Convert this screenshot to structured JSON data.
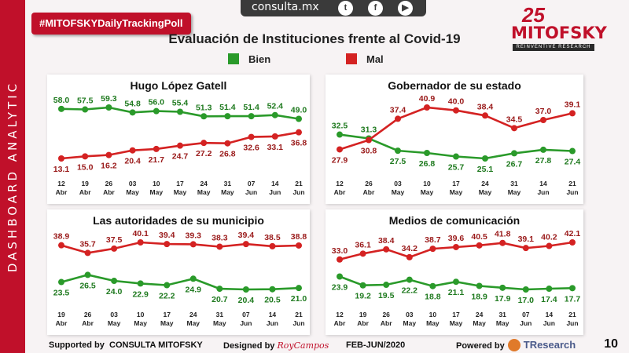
{
  "side_label": "DASHBOARD ANALYTIC",
  "hashtag": "#MITOFSKYDailyTrackingPoll",
  "topbar": {
    "site": "consulta.mx",
    "icons": [
      "twitter-icon",
      "facebook-icon",
      "youtube-icon"
    ]
  },
  "logo": {
    "number": "25",
    "name": "MITOFSKY",
    "tagline": "REINVENTIVE RESEARCH"
  },
  "colors": {
    "bien": "#2a9a2a",
    "mal": "#d42222",
    "bien_text": "#1f7a1f",
    "mal_text": "#9a1a1a"
  },
  "footer": {
    "supported_label": "Supported by",
    "supported_name": "CONSULTA MITOFSKY",
    "designed_label": "Designed by",
    "designed_name": "RoyCampos",
    "period": "FEB-JUN/2020",
    "powered_label": "Powered by",
    "powered_name": "TResearch",
    "page": "10"
  },
  "chart_data": [
    {
      "type": "line",
      "title": "Hugo López Gatell",
      "figure_title": "Evaluación de Instituciones frente al Covid-19",
      "legend": [
        "Bien",
        "Mal"
      ],
      "categories": [
        "12 Abr",
        "19 Abr",
        "26 Abr",
        "03 May",
        "10 May",
        "17 May",
        "24 May",
        "31 May",
        "07 Jun",
        "14 Jun",
        "21 Jun"
      ],
      "series": [
        {
          "name": "Bien",
          "values": [
            58.0,
            57.5,
            59.3,
            54.8,
            56.0,
            55.4,
            51.3,
            51.4,
            51.4,
            52.4,
            49.0
          ]
        },
        {
          "name": "Mal",
          "values": [
            13.1,
            15.0,
            16.2,
            20.4,
            21.7,
            24.7,
            27.2,
            26.8,
            32.6,
            33.1,
            36.8
          ]
        }
      ]
    },
    {
      "type": "line",
      "title": "Gobernador de su estado",
      "categories": [
        "12 Abr",
        "26 Abr",
        "03 May",
        "10 May",
        "17 May",
        "24 May",
        "31 May",
        "14 Jun",
        "21 Jun"
      ],
      "series": [
        {
          "name": "Bien",
          "values": [
            32.5,
            31.3,
            27.5,
            26.8,
            25.7,
            25.1,
            26.7,
            27.8,
            27.4
          ]
        },
        {
          "name": "Mal",
          "values": [
            27.9,
            30.8,
            37.4,
            40.9,
            40.0,
            38.4,
            34.5,
            37.0,
            39.1
          ]
        }
      ]
    },
    {
      "type": "line",
      "title": "Las autoridades de su municipio",
      "categories": [
        "19 Abr",
        "26 Abr",
        "03 May",
        "10 May",
        "17 May",
        "24 May",
        "31 May",
        "07 Jun",
        "14 Jun",
        "21 Jun"
      ],
      "series": [
        {
          "name": "Bien",
          "values": [
            23.5,
            26.5,
            24.0,
            22.9,
            22.2,
            24.9,
            20.7,
            20.4,
            20.5,
            21.0
          ]
        },
        {
          "name": "Mal",
          "values": [
            38.9,
            35.7,
            37.5,
            40.1,
            39.4,
            39.3,
            38.3,
            39.4,
            38.5,
            38.8
          ]
        }
      ]
    },
    {
      "type": "line",
      "title": "Medios de comunicación",
      "categories": [
        "12 Abr",
        "19 Abr",
        "26 Abr",
        "03 May",
        "10 May",
        "17 May",
        "24 May",
        "31 May",
        "07 Jun",
        "14 Jun",
        "21 Jun"
      ],
      "series": [
        {
          "name": "Bien",
          "values": [
            23.9,
            19.2,
            19.5,
            22.2,
            18.8,
            21.1,
            18.9,
            17.9,
            17.0,
            17.4,
            17.7
          ]
        },
        {
          "name": "Mal",
          "values": [
            33.0,
            36.1,
            38.4,
            34.2,
            38.7,
            39.6,
            40.5,
            41.8,
            39.1,
            40.2,
            42.1
          ]
        }
      ]
    }
  ]
}
